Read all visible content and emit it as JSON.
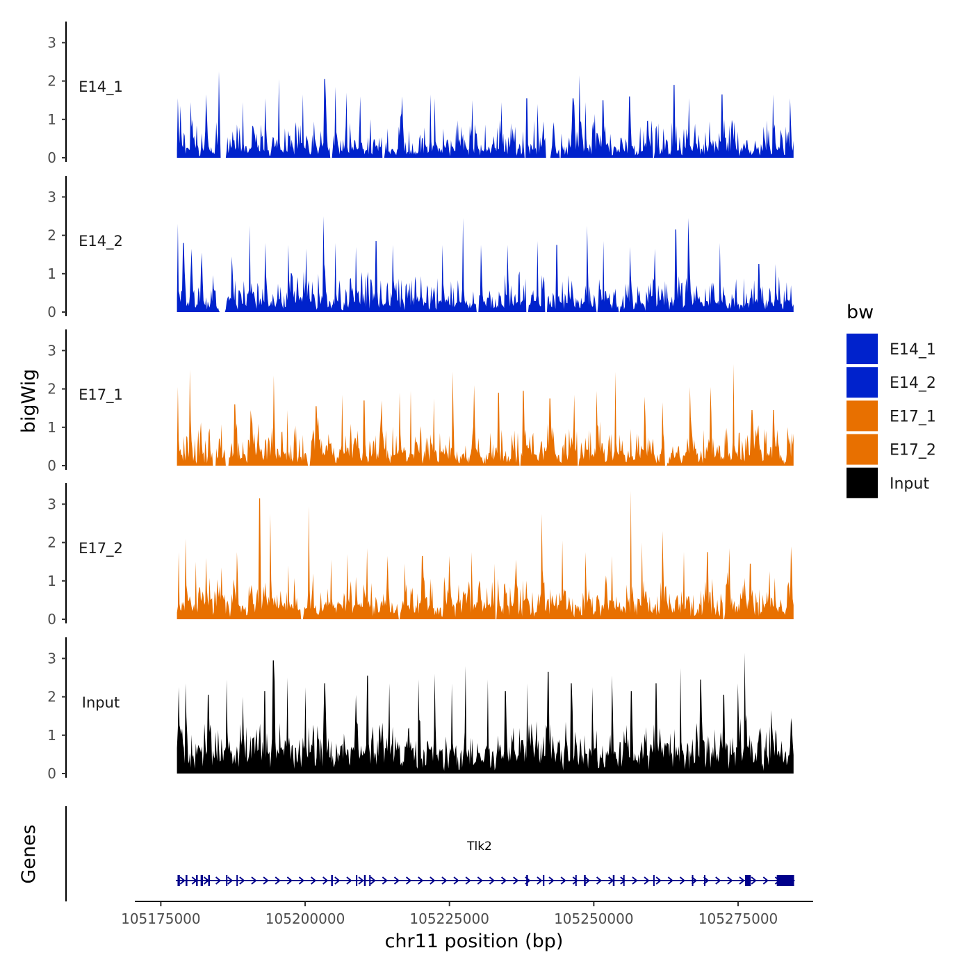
{
  "chart_data": {
    "type": "area",
    "x_axis": {
      "label": "chr11 position (bp)",
      "range": [
        105170500,
        105288000
      ],
      "data_extent": [
        105177800,
        105284600
      ],
      "ticks": [
        105175000,
        105200000,
        105225000,
        105250000,
        105275000
      ],
      "tick_labels": [
        "105175000",
        "105200000",
        "105225000",
        "105250000",
        "105275000"
      ]
    },
    "y_axis": {
      "label": "bigWig",
      "range": [
        0,
        3.5
      ],
      "ticks": [
        0,
        1,
        2,
        3
      ],
      "tick_labels": [
        "0",
        "1",
        "2",
        "3"
      ]
    },
    "series": [
      {
        "name": "E14_1",
        "color": "#0022CC",
        "seed": 11,
        "peaks": [
          [
            105177900,
            1.55
          ],
          [
            105178400,
            1.35
          ],
          [
            105180200,
            1.45
          ],
          [
            105182800,
            1.65
          ],
          [
            105185100,
            2.25
          ],
          [
            105189200,
            1.45
          ],
          [
            105193100,
            1.55
          ],
          [
            105195400,
            2.05
          ],
          [
            105199600,
            1.65
          ],
          [
            105203400,
            2.05
          ],
          [
            105205200,
            1.85
          ],
          [
            105207200,
            1.7
          ],
          [
            105209500,
            1.6
          ],
          [
            105213400,
            1.45
          ],
          [
            105216800,
            1.6
          ],
          [
            105221700,
            1.65
          ],
          [
            105222400,
            1.55
          ],
          [
            105229000,
            1.5
          ],
          [
            105234000,
            1.45
          ],
          [
            105238400,
            1.55
          ],
          [
            105240300,
            1.4
          ],
          [
            105246400,
            1.55
          ],
          [
            105247500,
            2.15
          ],
          [
            105248500,
            1.45
          ],
          [
            105251600,
            1.5
          ],
          [
            105256200,
            1.6
          ],
          [
            105260400,
            1.45
          ],
          [
            105263900,
            1.9
          ],
          [
            105266500,
            1.55
          ],
          [
            105272200,
            1.65
          ],
          [
            105281000,
            1.65
          ],
          [
            105284000,
            1.55
          ]
        ],
        "gaps": [
          [
            105185300,
            105186300
          ],
          [
            105204300,
            105204700
          ],
          [
            105213300,
            105213800
          ],
          [
            105238000,
            105238300
          ],
          [
            105241700,
            105242500
          ],
          [
            105244000,
            105244400
          ],
          [
            105260200,
            105260500
          ]
        ],
        "baseline": 0.22,
        "noise": 0.7
      },
      {
        "name": "E14_2",
        "color": "#0022CC",
        "seed": 23,
        "peaks": [
          [
            105178000,
            2.3
          ],
          [
            105178900,
            1.8
          ],
          [
            105180300,
            1.65
          ],
          [
            105182100,
            1.55
          ],
          [
            105187300,
            1.45
          ],
          [
            105190400,
            2.25
          ],
          [
            105193100,
            1.8
          ],
          [
            105197100,
            1.75
          ],
          [
            105200200,
            1.65
          ],
          [
            105203200,
            2.5
          ],
          [
            105205300,
            1.8
          ],
          [
            105208800,
            1.7
          ],
          [
            105212300,
            1.85
          ],
          [
            105215200,
            1.75
          ],
          [
            105223800,
            1.75
          ],
          [
            105227300,
            2.45
          ],
          [
            105230400,
            1.75
          ],
          [
            105235000,
            1.75
          ],
          [
            105240300,
            1.85
          ],
          [
            105243600,
            1.75
          ],
          [
            105248800,
            2.25
          ],
          [
            105251700,
            1.85
          ],
          [
            105256300,
            1.7
          ],
          [
            105260600,
            1.65
          ],
          [
            105264200,
            2.15
          ],
          [
            105266400,
            2.45
          ],
          [
            105271800,
            1.8
          ],
          [
            105278600,
            1.25
          ],
          [
            105281500,
            1.25
          ],
          [
            105284100,
            0.7
          ]
        ],
        "gaps": [
          [
            105185100,
            105186200
          ],
          [
            105229700,
            105230100
          ],
          [
            105238300,
            105238700
          ],
          [
            105241500,
            105241900
          ],
          [
            105250400,
            105250700
          ],
          [
            105254200,
            105254500
          ]
        ],
        "baseline": 0.25,
        "noise": 0.7
      },
      {
        "name": "E17_1",
        "color": "#E87000",
        "seed": 37,
        "peaks": [
          [
            105178000,
            2.05
          ],
          [
            105180000,
            2.5
          ],
          [
            105184200,
            1.55
          ],
          [
            105187800,
            1.6
          ],
          [
            105190500,
            1.45
          ],
          [
            105194600,
            2.35
          ],
          [
            105196900,
            1.45
          ],
          [
            105201900,
            1.55
          ],
          [
            105206400,
            1.85
          ],
          [
            105210200,
            1.7
          ],
          [
            105213200,
            1.7
          ],
          [
            105216400,
            1.9
          ],
          [
            105218300,
            1.95
          ],
          [
            105222300,
            1.75
          ],
          [
            105225600,
            2.45
          ],
          [
            105229300,
            2.1
          ],
          [
            105233500,
            1.9
          ],
          [
            105237800,
            1.95
          ],
          [
            105242400,
            1.75
          ],
          [
            105246600,
            1.85
          ],
          [
            105250500,
            1.95
          ],
          [
            105253800,
            2.45
          ],
          [
            105258800,
            1.8
          ],
          [
            105261900,
            1.65
          ],
          [
            105266600,
            2.05
          ],
          [
            105270200,
            2.05
          ],
          [
            105274200,
            2.65
          ],
          [
            105277400,
            1.45
          ],
          [
            105281100,
            1.45
          ],
          [
            105284300,
            0.85
          ]
        ],
        "gaps": [
          [
            105183900,
            105184600
          ],
          [
            105186200,
            105186800
          ],
          [
            105200400,
            105200900
          ],
          [
            105237100,
            105237400
          ],
          [
            105247100,
            105247400
          ],
          [
            105262300,
            105262700
          ]
        ],
        "baseline": 0.3,
        "noise": 0.7
      },
      {
        "name": "E17_2",
        "color": "#E87000",
        "seed": 53,
        "peaks": [
          [
            105178100,
            1.75
          ],
          [
            105179300,
            2.1
          ],
          [
            105181100,
            1.5
          ],
          [
            105182800,
            1.6
          ],
          [
            105185500,
            1.35
          ],
          [
            105188200,
            1.75
          ],
          [
            105192100,
            3.15
          ],
          [
            105194000,
            2.75
          ],
          [
            105197100,
            1.4
          ],
          [
            105200700,
            2.95
          ],
          [
            105204500,
            1.55
          ],
          [
            105207300,
            1.7
          ],
          [
            105210700,
            1.85
          ],
          [
            105214300,
            1.65
          ],
          [
            105217200,
            1.45
          ],
          [
            105220300,
            1.65
          ],
          [
            105225000,
            1.65
          ],
          [
            105228800,
            1.75
          ],
          [
            105232800,
            1.45
          ],
          [
            105236500,
            1.55
          ],
          [
            105241000,
            2.75
          ],
          [
            105244500,
            2.05
          ],
          [
            105248600,
            1.75
          ],
          [
            105253200,
            1.65
          ],
          [
            105256400,
            3.35
          ],
          [
            105258300,
            2.0
          ],
          [
            105261900,
            2.3
          ],
          [
            105265600,
            1.75
          ],
          [
            105269700,
            1.75
          ],
          [
            105273500,
            1.85
          ],
          [
            105277100,
            1.45
          ],
          [
            105280500,
            1.25
          ],
          [
            105284100,
            1.9
          ]
        ],
        "gaps": [
          [
            105199300,
            105199700
          ],
          [
            105216200,
            105216500
          ],
          [
            105232900,
            105233200
          ],
          [
            105272400,
            105272600
          ]
        ],
        "baseline": 0.35,
        "noise": 0.7
      },
      {
        "name": "Input",
        "color": "#000000",
        "seed": 71,
        "peaks": [
          [
            105178100,
            2.25
          ],
          [
            105179300,
            2.35
          ],
          [
            105183200,
            2.05
          ],
          [
            105186400,
            2.45
          ],
          [
            105189200,
            2.0
          ],
          [
            105193000,
            2.15
          ],
          [
            105194500,
            2.95
          ],
          [
            105196900,
            2.5
          ],
          [
            105200100,
            2.25
          ],
          [
            105203400,
            2.35
          ],
          [
            105208800,
            2.05
          ],
          [
            105210800,
            2.55
          ],
          [
            105214600,
            2.35
          ],
          [
            105219600,
            2.45
          ],
          [
            105222500,
            2.6
          ],
          [
            105225400,
            2.35
          ],
          [
            105227800,
            2.8
          ],
          [
            105231700,
            2.45
          ],
          [
            105234700,
            2.15
          ],
          [
            105238500,
            2.35
          ],
          [
            105242100,
            2.65
          ],
          [
            105246100,
            2.35
          ],
          [
            105249800,
            2.25
          ],
          [
            105253200,
            2.55
          ],
          [
            105256500,
            2.15
          ],
          [
            105260800,
            2.35
          ],
          [
            105265000,
            2.75
          ],
          [
            105268500,
            2.45
          ],
          [
            105272500,
            2.05
          ],
          [
            105275000,
            2.35
          ],
          [
            105276100,
            3.15
          ],
          [
            105280800,
            1.65
          ],
          [
            105284200,
            1.45
          ]
        ],
        "gaps": [],
        "baseline": 0.55,
        "noise": 0.65
      }
    ],
    "legend": {
      "title": "bw",
      "placement": "right",
      "items": [
        {
          "label": "E14_1",
          "color": "#0022CC"
        },
        {
          "label": "E14_2",
          "color": "#0022CC"
        },
        {
          "label": "E17_1",
          "color": "#E87000"
        },
        {
          "label": "E17_2",
          "color": "#E87000"
        },
        {
          "label": "Input",
          "color": "#000000"
        }
      ]
    },
    "genes_track": {
      "label": "Genes",
      "color": "#00008B",
      "genes": [
        {
          "name": "Tlk2",
          "strand": "+",
          "start": 105177600,
          "end": 105284800,
          "exons": [
            [
              105177900,
              105178300
            ],
            [
              105179300,
              105179600
            ],
            [
              105181100,
              105181400
            ],
            [
              105181900,
              105182300
            ],
            [
              105183200,
              105183500
            ],
            [
              105186300,
              105186500
            ],
            [
              105188100,
              105188300
            ],
            [
              105204500,
              105204800
            ],
            [
              105208800,
              105209000
            ],
            [
              105210200,
              105210500
            ],
            [
              105211100,
              105211300
            ],
            [
              105238300,
              105238600
            ],
            [
              105241200,
              105241400
            ],
            [
              105246800,
              105247000
            ],
            [
              105248300,
              105248600
            ],
            [
              105253300,
              105253600
            ],
            [
              105255100,
              105255300
            ],
            [
              105260300,
              105260500
            ],
            [
              105267000,
              105267200
            ],
            [
              105269100,
              105269300
            ],
            [
              105276200,
              105277200
            ],
            [
              105281700,
              105284700
            ]
          ]
        }
      ]
    }
  }
}
